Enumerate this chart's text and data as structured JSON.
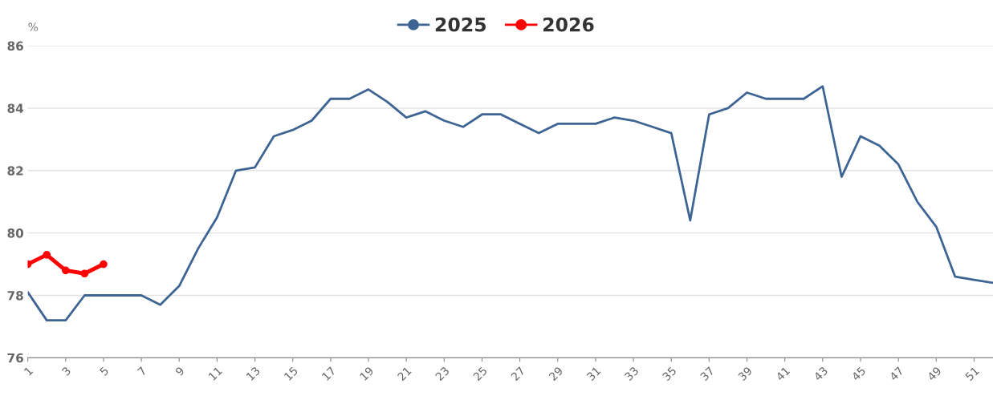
{
  "chart_data": {
    "type": "line",
    "ylabel": "%",
    "categories": [
      "1",
      null,
      "3",
      null,
      "5",
      null,
      "7",
      null,
      "9",
      null,
      "11",
      null,
      "13",
      null,
      "15",
      null,
      "17",
      null,
      "19",
      null,
      "21",
      null,
      "23",
      null,
      "25",
      null,
      "27",
      null,
      "29",
      null,
      "31",
      null,
      "33",
      null,
      "35",
      null,
      "37",
      null,
      "39",
      null,
      "41",
      null,
      "43",
      null,
      "45",
      null,
      "47",
      null,
      "49",
      null,
      "51",
      null
    ],
    "series": [
      {
        "name": "2025",
        "color": "#3e6493",
        "marker": "none",
        "values": [
          78.1,
          77.2,
          77.2,
          78.0,
          78.0,
          78.0,
          78.0,
          77.7,
          78.3,
          79.5,
          80.5,
          82.0,
          82.1,
          83.1,
          83.3,
          83.6,
          84.3,
          84.3,
          84.6,
          84.2,
          83.7,
          83.9,
          83.6,
          83.4,
          83.8,
          83.8,
          83.5,
          83.2,
          83.5,
          83.5,
          83.5,
          83.7,
          83.6,
          83.4,
          83.2,
          80.4,
          83.8,
          84.0,
          84.5,
          84.3,
          84.3,
          84.3,
          84.7,
          81.8,
          83.1,
          82.8,
          82.2,
          81.0,
          80.2,
          78.6,
          78.5,
          78.4
        ]
      },
      {
        "name": "2026",
        "color": "#ff0000",
        "marker": "circle",
        "values": [
          79.0,
          79.3,
          78.8,
          78.7,
          79.0,
          null,
          null,
          null,
          null,
          null,
          null,
          null,
          null,
          null,
          null,
          null,
          null,
          null,
          null,
          null,
          null,
          null,
          null,
          null,
          null,
          null,
          null,
          null,
          null,
          null,
          null,
          null,
          null,
          null,
          null,
          null,
          null,
          null,
          null,
          null,
          null,
          null,
          null,
          null,
          null,
          null,
          null,
          null,
          null,
          null,
          null,
          null
        ]
      }
    ],
    "ylim": [
      76,
      86
    ],
    "yticks": [
      76,
      78,
      80,
      82,
      84,
      86
    ],
    "grid": "y",
    "legend": "top",
    "line_style": "solid"
  }
}
